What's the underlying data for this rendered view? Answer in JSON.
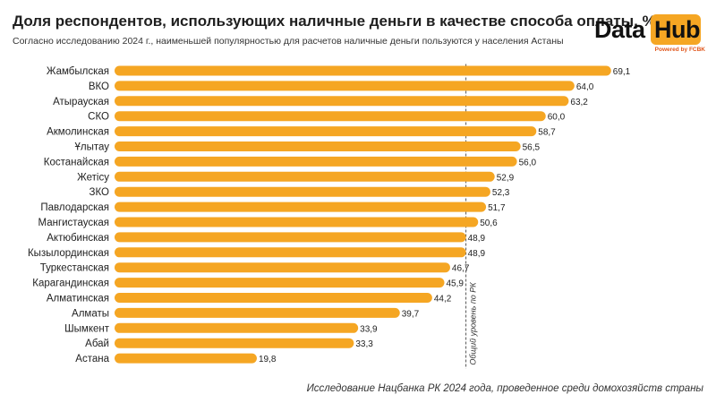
{
  "header": {
    "title": "Доля респондентов, использующих наличные деньги в качестве способа оплаты, %",
    "subtitle": "Согласно исследованию 2024 г., наименьшей популярностью для расчетов наличные деньги пользуются у населения Астаны"
  },
  "logo": {
    "word_data": "Data",
    "word_hub": "Hub",
    "powered": "Powered by FCBK"
  },
  "footer": {
    "source": "Исследование Нацбанка РК 2024 года, проведенное среди домохозяйств страны"
  },
  "colors": {
    "bar": "#f5a623",
    "text": "#222222",
    "reference_line": "#555555"
  },
  "chart_data": {
    "type": "bar",
    "orientation": "horizontal",
    "categories": [
      "Жамбылская",
      "ВКО",
      "Атырауская",
      "СКО",
      "Акмолинская",
      "Ұлытау",
      "Костанайская",
      "Жетісу",
      "ЗКО",
      "Павлодарская",
      "Мангистауская",
      "Актюбинская",
      "Кызылординская",
      "Туркестанская",
      "Карагандинская",
      "Алматинская",
      "Алматы",
      "Шымкент",
      "Абай",
      "Астана"
    ],
    "values": [
      69.1,
      64.0,
      63.2,
      60.0,
      58.7,
      56.5,
      56.0,
      52.9,
      52.3,
      51.7,
      50.6,
      48.9,
      48.9,
      46.7,
      45.9,
      44.2,
      39.7,
      33.9,
      33.3,
      19.8
    ],
    "value_labels": [
      "69,1",
      "64,0",
      "63,2",
      "60,0",
      "58,7",
      "56,5",
      "56,0",
      "52,9",
      "52,3",
      "51,7",
      "50,6",
      "48,9",
      "48,9",
      "46,7",
      "45,9",
      "44,2",
      "39,7",
      "33,9",
      "33,3",
      "19,8"
    ],
    "reference_line": {
      "value": 48.9,
      "label": "Общий уровень по РК"
    },
    "xlim": [
      0,
      70
    ],
    "grid": false,
    "legend": "none"
  }
}
